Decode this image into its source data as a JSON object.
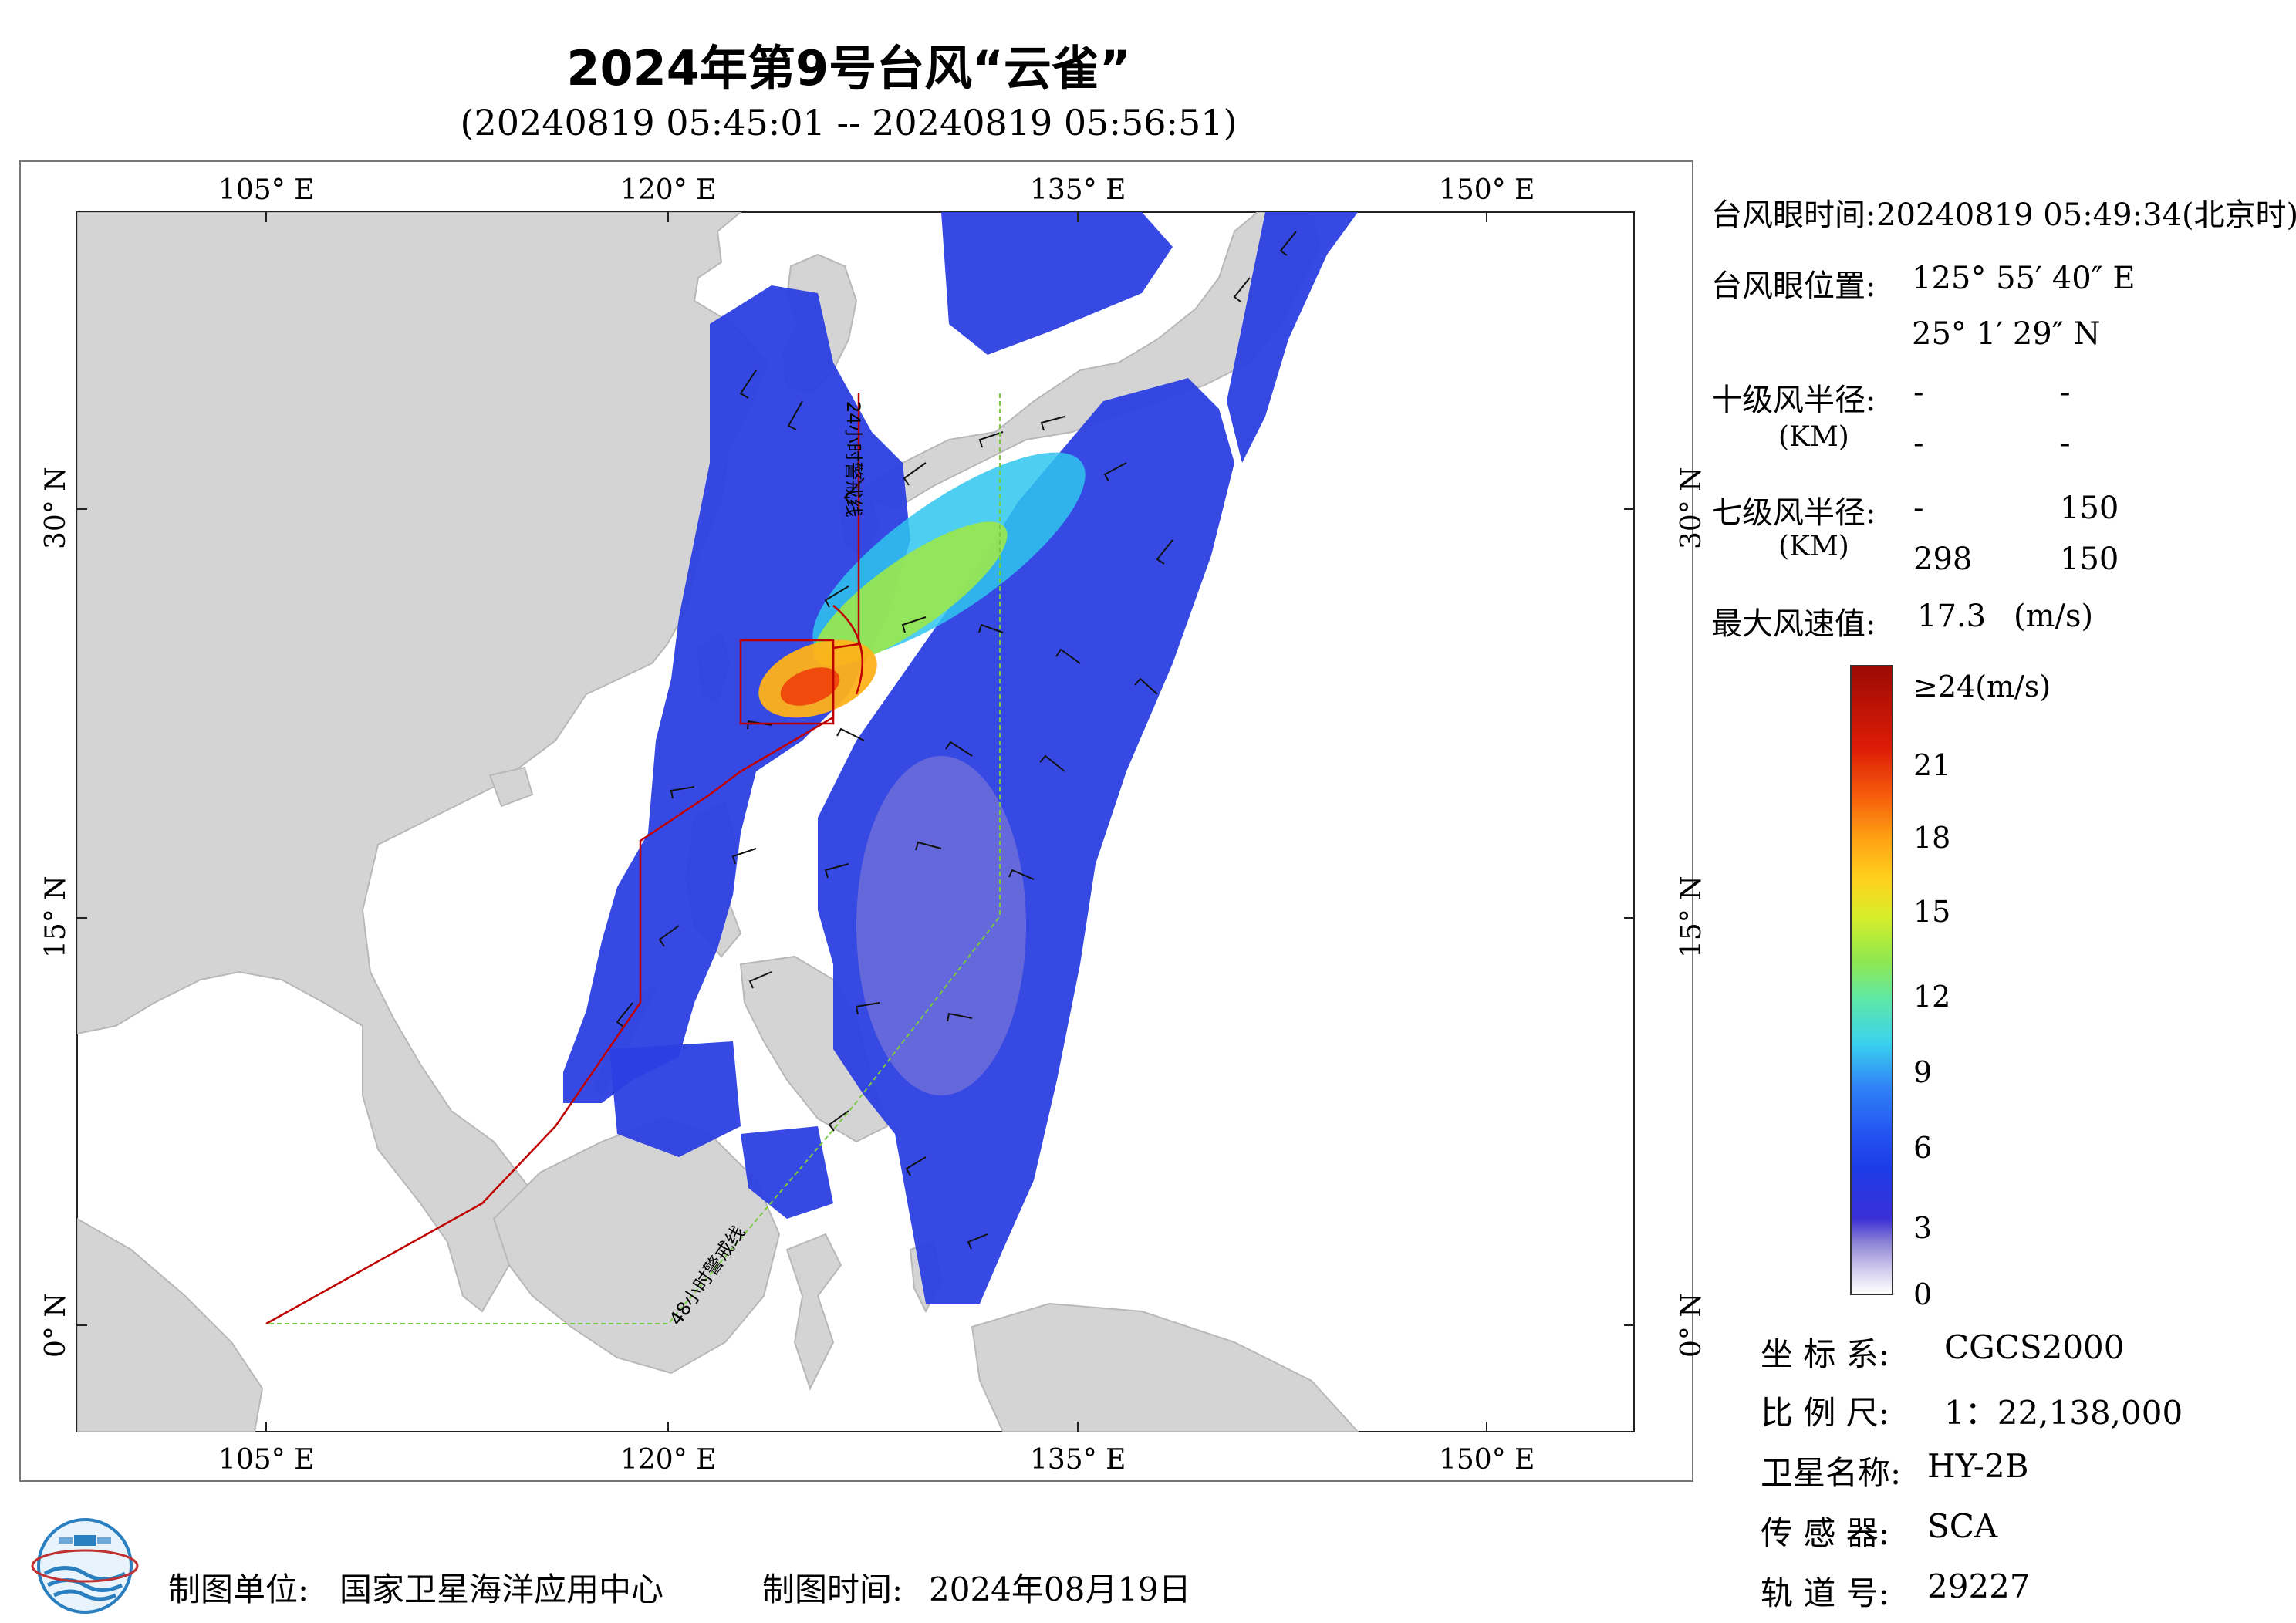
{
  "header": {
    "title": "2024年第9号台风“云雀”",
    "subtitle": "(20240819 05:45:01 -- 20240819 05:56:51)"
  },
  "map": {
    "lon_labels": [
      "105° E",
      "120° E",
      "135° E",
      "150° E"
    ],
    "lat_labels": [
      "30° N",
      "15° N",
      "0° N"
    ],
    "warning_24h_label": "24小时警戒线",
    "warning_48h_label": "48小时警戒线",
    "colors": {
      "land": "#d4d4d4",
      "sea": "#ffffff",
      "line_24h": "#c00000",
      "line_48h": "#7ac943",
      "wind_low": "#2d3fe0",
      "wind_high": "#e01a0a"
    }
  },
  "info": {
    "eye_time_label": "台风眼时间:",
    "eye_time_value": "20240819 05:49:34(北京时)",
    "eye_pos_label": "台风眼位置:",
    "eye_lon": "125° 55′ 40″ E",
    "eye_lat": "25° 1′ 29″ N",
    "r10_label": "十级风半径:",
    "r10_unit": "(KM)",
    "r10_values": [
      "-",
      "-",
      "-",
      "-"
    ],
    "r7_label": "七级风半径:",
    "r7_unit": "(KM)",
    "r7_values": [
      "-",
      "150",
      "298",
      "150"
    ],
    "max_wind_label": "最大风速值:",
    "max_wind_value": "17.3",
    "max_wind_unit": "(m/s)"
  },
  "legend": {
    "labels": [
      "≥24(m/s)",
      "21",
      "18",
      "15",
      "12",
      "9",
      "6",
      "3",
      "0"
    ]
  },
  "meta": {
    "crs_label": "坐 标 系:",
    "crs_value": "CGCS2000",
    "scale_label": "比 例 尺:",
    "scale_value": "1：22,138,000",
    "satellite_label": "卫星名称:",
    "satellite_value": "HY-2B",
    "sensor_label": "传 感 器:",
    "sensor_value": "SCA",
    "orbit_label": "轨 道 号:",
    "orbit_value": "29227"
  },
  "footer": {
    "org_label": "制图单位:",
    "org_value": "国家卫星海洋应用中心",
    "date_label": "制图时间:",
    "date_value": "2024年08月19日"
  }
}
